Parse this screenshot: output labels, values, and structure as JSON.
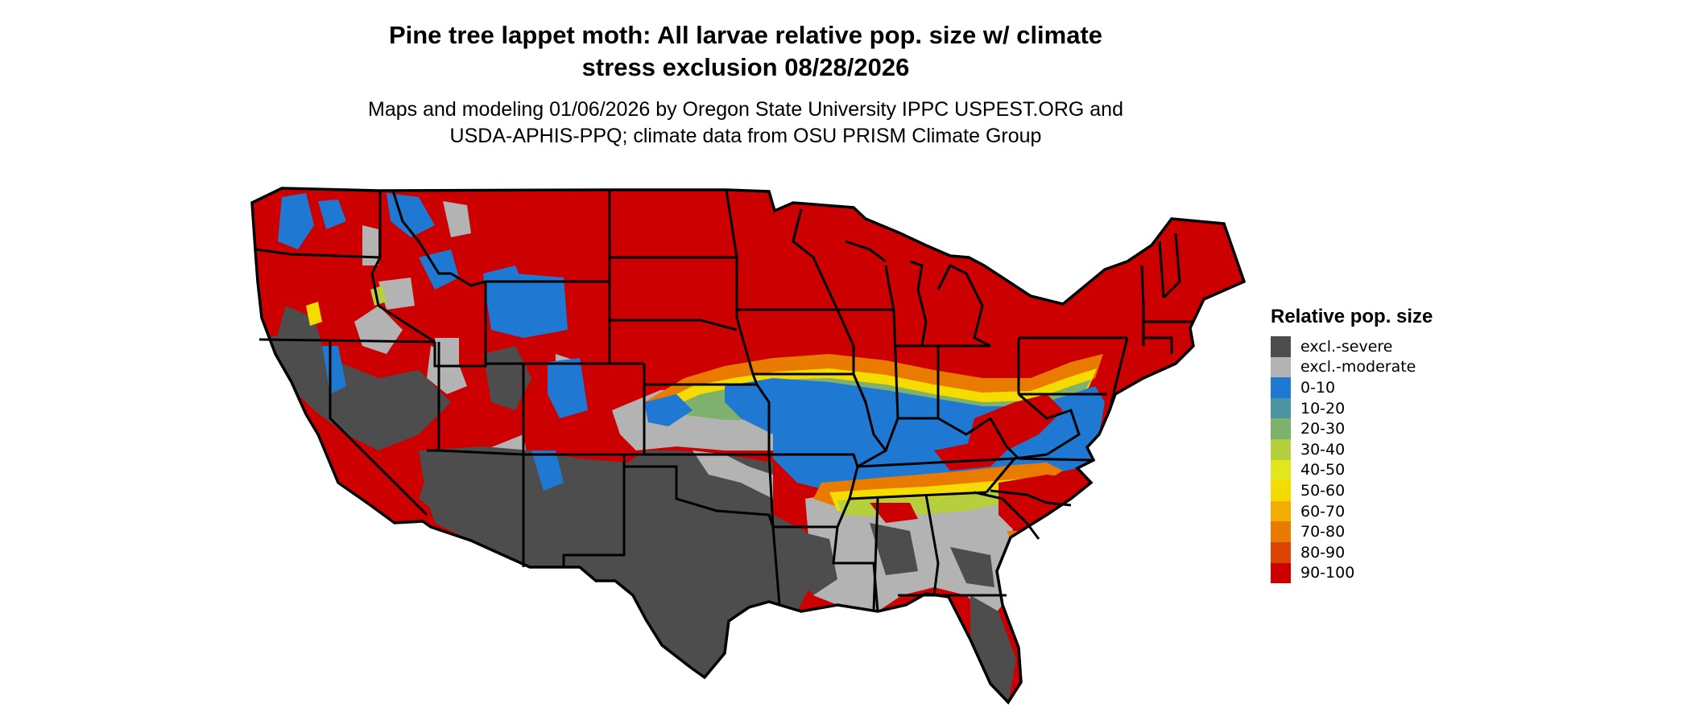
{
  "title_line1": "Pine tree lappet moth: All larvae relative pop. size w/ climate",
  "title_line2": "stress exclusion 08/28/2026",
  "subtitle_line1": "Maps and modeling 01/06/2026 by Oregon State University IPPC USPEST.ORG and",
  "subtitle_line2": "USDA-APHIS-PPQ; climate data from OSU PRISM Climate Group",
  "legend": {
    "title": "Relative pop. size",
    "items": [
      {
        "label": "excl.-severe",
        "color": "#4d4d4d"
      },
      {
        "label": "excl.-moderate",
        "color": "#b3b3b3"
      },
      {
        "label": "0-10",
        "color": "#1f78d1"
      },
      {
        "label": "10-20",
        "color": "#4b95a2"
      },
      {
        "label": "20-30",
        "color": "#7eb06e"
      },
      {
        "label": "30-40",
        "color": "#b5cf3d"
      },
      {
        "label": "40-50",
        "color": "#e2e61c"
      },
      {
        "label": "50-60",
        "color": "#f5dc00"
      },
      {
        "label": "60-70",
        "color": "#f2ad00"
      },
      {
        "label": "70-80",
        "color": "#e87b00"
      },
      {
        "label": "80-90",
        "color": "#d94400"
      },
      {
        "label": "90-100",
        "color": "#cc0000"
      }
    ]
  }
}
